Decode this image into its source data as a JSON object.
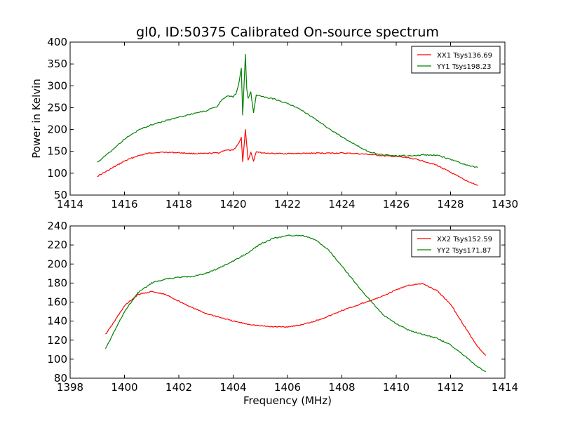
{
  "figure": {
    "title": "gl0, ID:50375 Calibrated On-source spectrum"
  },
  "colors": {
    "red": "#ff0000",
    "green": "#008000"
  },
  "chart_data": [
    {
      "type": "line",
      "title": "gl0, ID:50375 Calibrated On-source spectrum",
      "xlabel": "",
      "ylabel": "Power in Kelvin",
      "xlim": [
        1414,
        1430
      ],
      "ylim": [
        50,
        400
      ],
      "xticks": [
        1414,
        1416,
        1418,
        1420,
        1422,
        1424,
        1426,
        1428,
        1430
      ],
      "yticks": [
        50,
        100,
        150,
        200,
        250,
        300,
        350,
        400
      ],
      "legend_position": "top-right",
      "series": [
        {
          "name": "XX1 Tsys136.69",
          "color": "#ff0000",
          "points": [
            [
              1415.0,
              93
            ],
            [
              1415.5,
              110
            ],
            [
              1416.0,
              128
            ],
            [
              1416.5,
              140
            ],
            [
              1417.0,
              147
            ],
            [
              1417.5,
              148
            ],
            [
              1418.0,
              147
            ],
            [
              1418.5,
              145
            ],
            [
              1419.0,
              145
            ],
            [
              1419.5,
              147
            ],
            [
              1419.7,
              153
            ],
            [
              1420.0,
              152
            ],
            [
              1420.2,
              168
            ],
            [
              1420.3,
              182
            ],
            [
              1420.35,
              125
            ],
            [
              1420.45,
              200
            ],
            [
              1420.55,
              130
            ],
            [
              1420.65,
              148
            ],
            [
              1420.75,
              128
            ],
            [
              1420.85,
              150
            ],
            [
              1421.0,
              147
            ],
            [
              1421.5,
              145
            ],
            [
              1422.0,
              145
            ],
            [
              1422.5,
              145
            ],
            [
              1423.0,
              146
            ],
            [
              1423.5,
              146
            ],
            [
              1424.0,
              146
            ],
            [
              1424.5,
              145
            ],
            [
              1425.0,
              143
            ],
            [
              1425.5,
              140
            ],
            [
              1426.0,
              138
            ],
            [
              1426.5,
              135
            ],
            [
              1427.0,
              128
            ],
            [
              1427.5,
              118
            ],
            [
              1428.0,
              102
            ],
            [
              1428.5,
              85
            ],
            [
              1429.0,
              72
            ]
          ]
        },
        {
          "name": "YY1 Tsys198.23",
          "color": "#008000",
          "points": [
            [
              1415.0,
              125
            ],
            [
              1415.5,
              150
            ],
            [
              1416.0,
              178
            ],
            [
              1416.5,
              198
            ],
            [
              1417.0,
              211
            ],
            [
              1417.5,
              220
            ],
            [
              1418.0,
              228
            ],
            [
              1418.5,
              236
            ],
            [
              1419.0,
              243
            ],
            [
              1419.4,
              252
            ],
            [
              1419.6,
              270
            ],
            [
              1419.8,
              277
            ],
            [
              1420.0,
              275
            ],
            [
              1420.1,
              282
            ],
            [
              1420.2,
              302
            ],
            [
              1420.3,
              340
            ],
            [
              1420.35,
              232
            ],
            [
              1420.45,
              372
            ],
            [
              1420.5,
              292
            ],
            [
              1420.55,
              272
            ],
            [
              1420.65,
              285
            ],
            [
              1420.75,
              238
            ],
            [
              1420.85,
              280
            ],
            [
              1421.0,
              276
            ],
            [
              1421.5,
              270
            ],
            [
              1422.0,
              260
            ],
            [
              1422.5,
              245
            ],
            [
              1423.0,
              225
            ],
            [
              1423.5,
              203
            ],
            [
              1424.0,
              183
            ],
            [
              1424.5,
              165
            ],
            [
              1425.0,
              149
            ],
            [
              1425.5,
              142
            ],
            [
              1426.0,
              140
            ],
            [
              1426.5,
              140
            ],
            [
              1427.0,
              142
            ],
            [
              1427.5,
              141
            ],
            [
              1428.0,
              132
            ],
            [
              1428.5,
              120
            ],
            [
              1429.0,
              113
            ]
          ]
        }
      ]
    },
    {
      "type": "line",
      "title": "",
      "xlabel": "Frequency (MHz)",
      "ylabel": "",
      "xlim": [
        1398,
        1414
      ],
      "ylim": [
        80,
        240
      ],
      "xticks": [
        1398,
        1400,
        1402,
        1404,
        1406,
        1408,
        1410,
        1412,
        1414
      ],
      "yticks": [
        80,
        100,
        120,
        140,
        160,
        180,
        200,
        220,
        240
      ],
      "legend_position": "top-right",
      "series": [
        {
          "name": "XX2 Tsys152.59",
          "color": "#ff0000",
          "points": [
            [
              1399.3,
              126
            ],
            [
              1399.5,
              134
            ],
            [
              1400.0,
              156
            ],
            [
              1400.5,
              168
            ],
            [
              1401.0,
              171
            ],
            [
              1401.5,
              168
            ],
            [
              1402.0,
              161
            ],
            [
              1402.5,
              154
            ],
            [
              1403.0,
              148
            ],
            [
              1403.5,
              144
            ],
            [
              1404.0,
              140
            ],
            [
              1404.5,
              137
            ],
            [
              1405.0,
              135
            ],
            [
              1405.5,
              134
            ],
            [
              1406.0,
              134
            ],
            [
              1406.5,
              136
            ],
            [
              1407.0,
              140
            ],
            [
              1407.5,
              145
            ],
            [
              1408.0,
              151
            ],
            [
              1408.5,
              156
            ],
            [
              1409.0,
              161
            ],
            [
              1409.5,
              166
            ],
            [
              1410.0,
              173
            ],
            [
              1410.5,
              178
            ],
            [
              1411.0,
              179
            ],
            [
              1411.5,
              172
            ],
            [
              1412.0,
              158
            ],
            [
              1412.5,
              135
            ],
            [
              1413.0,
              113
            ],
            [
              1413.3,
              104
            ]
          ]
        },
        {
          "name": "YY2 Tsys171.87",
          "color": "#008000",
          "points": [
            [
              1399.3,
              111
            ],
            [
              1399.5,
              122
            ],
            [
              1400.0,
              150
            ],
            [
              1400.5,
              170
            ],
            [
              1401.0,
              180
            ],
            [
              1401.5,
              184
            ],
            [
              1402.0,
              186
            ],
            [
              1402.5,
              187
            ],
            [
              1403.0,
              190
            ],
            [
              1403.5,
              196
            ],
            [
              1404.0,
              203
            ],
            [
              1404.5,
              211
            ],
            [
              1405.0,
              221
            ],
            [
              1405.5,
              227
            ],
            [
              1406.0,
              230
            ],
            [
              1406.5,
              230
            ],
            [
              1407.0,
              226
            ],
            [
              1407.5,
              215
            ],
            [
              1408.0,
              198
            ],
            [
              1408.5,
              180
            ],
            [
              1409.0,
              163
            ],
            [
              1409.5,
              147
            ],
            [
              1410.0,
              137
            ],
            [
              1410.5,
              130
            ],
            [
              1411.0,
              126
            ],
            [
              1411.5,
              122
            ],
            [
              1412.0,
              115
            ],
            [
              1412.5,
              104
            ],
            [
              1413.0,
              92
            ],
            [
              1413.3,
              87
            ]
          ]
        }
      ]
    }
  ]
}
